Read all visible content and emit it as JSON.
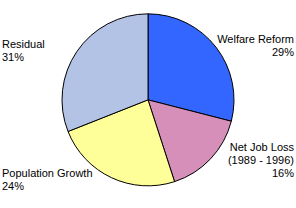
{
  "chart_data": {
    "type": "pie",
    "categories": [
      "Welfare Reform",
      "Net Job Loss (1989 - 1996)",
      "Population Growth",
      "Residual"
    ],
    "values": [
      29,
      16,
      24,
      31
    ],
    "value_labels": [
      "29%",
      "16%",
      "24%",
      "31%"
    ],
    "colors": [
      "#3366ff",
      "#d68fb8",
      "#ffff99",
      "#b3c3e6"
    ],
    "data_labels": true
  }
}
